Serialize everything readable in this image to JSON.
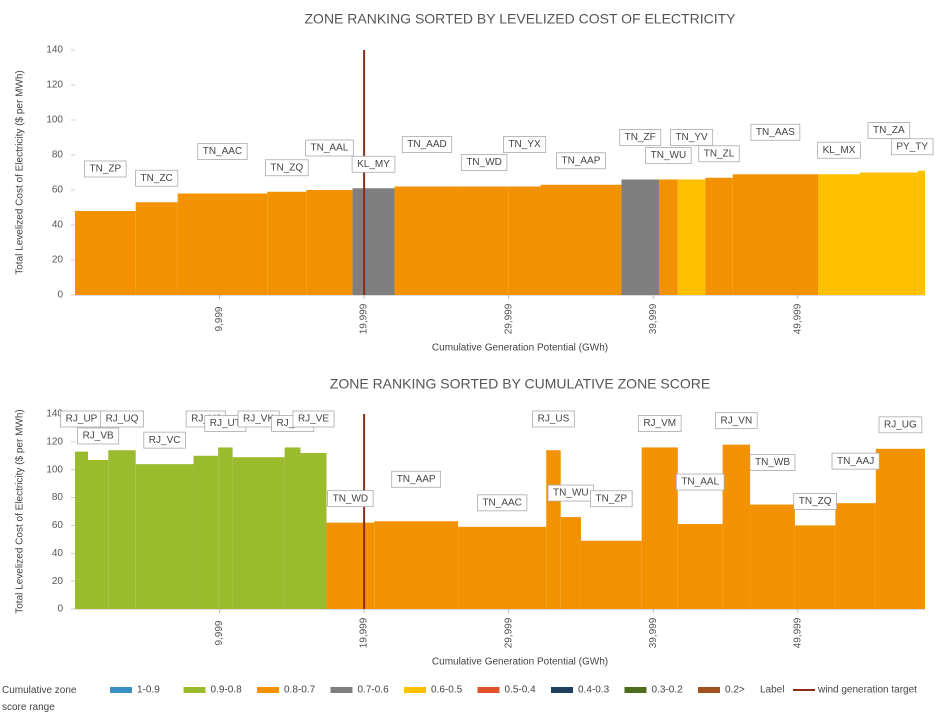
{
  "chart_data": [
    {
      "type": "variwide",
      "title": "ZONE RANKING SORTED BY LEVELIZED COST OF ELECTRICITY",
      "xlabel": "Cumulative Generation Potential (GWh)",
      "ylabel": "Total Levelized Cost of Electricity ($ per MWh)",
      "categories": [
        "TN_ZP",
        "TN_ZC",
        "TN_AAC",
        "TN_ZQ",
        "TN_AAL",
        "KL_MY",
        "TN_AAD",
        "TN_WD",
        "TN_YX",
        "TN_AAP",
        "TN_ZF",
        "TN_WU",
        "TN_YV",
        "TN_ZL",
        "TN_AAS",
        "KL_MX",
        "TN_ZA",
        "PY_TY"
      ],
      "x_edges": [
        0,
        4200,
        7100,
        13300,
        16000,
        19200,
        22100,
        26600,
        30000,
        32200,
        37800,
        40400,
        41700,
        43600,
        45500,
        51400,
        54300,
        58300,
        58800
      ],
      "values": [
        48,
        53,
        58,
        59,
        60,
        61,
        62,
        62,
        62,
        63,
        66,
        66,
        66,
        67,
        69,
        69,
        70,
        71
      ],
      "colors": [
        "#f39200",
        "#f39200",
        "#f39200",
        "#f39200",
        "#f39200",
        "#7f7f7f",
        "#f39200",
        "#f39200",
        "#f39200",
        "#f39200",
        "#7f7f7f",
        "#f39200",
        "#ffc000",
        "#f39200",
        "#f39200",
        "#ffc000",
        "#ffc000",
        "#ffc000"
      ],
      "xlim": [
        0,
        58800
      ],
      "xticks": [
        {
          "value": 9999,
          "label": "9,999"
        },
        {
          "value": 19999,
          "label": "19,999"
        },
        {
          "value": 29999,
          "label": "29,999"
        },
        {
          "value": 39999,
          "label": "39,999"
        },
        {
          "value": 49999,
          "label": "49,999"
        }
      ],
      "ylim": [
        0,
        140
      ],
      "yticks": [
        0,
        20,
        40,
        60,
        80,
        100,
        120,
        140
      ],
      "target_x": 20000,
      "target_color": "#8b2c1a"
    },
    {
      "type": "variwide",
      "title": "ZONE RANKING SORTED BY CUMULATIVE ZONE SCORE",
      "xlabel": "Cumulative Generation Potential (GWh)",
      "ylabel": "Total Levelized Cost of Electricity ($ per MWh)",
      "categories": [
        "RJ_UP",
        "RJ_VB",
        "RJ_UQ",
        "RJ_VC",
        "RJ_VJ",
        "RJ_UT",
        "RJ_VK",
        "RJ_VO",
        "RJ_VE",
        "TN_WD",
        "TN_AAP",
        "TN_AAC",
        "RJ_US",
        "TN_WU",
        "TN_ZP",
        "RJ_VM",
        "TN_AAL",
        "RJ_VN",
        "TN_WB",
        "TN_ZQ",
        "TN_AAJ",
        "RJ_UG"
      ],
      "x_edges": [
        0,
        900,
        2300,
        4200,
        8200,
        9900,
        10900,
        14500,
        15600,
        17400,
        20700,
        26500,
        32600,
        33600,
        35000,
        39200,
        41700,
        44800,
        46700,
        49800,
        52600,
        55400,
        58800
      ],
      "values": [
        113,
        107,
        114,
        104,
        110,
        116,
        109,
        116,
        112,
        62,
        63,
        59,
        114,
        66,
        49,
        116,
        61,
        118,
        75,
        60,
        76,
        115
      ],
      "colors": [
        "#9bbb2f",
        "#9bbb2f",
        "#9bbb2f",
        "#9bbb2f",
        "#9bbb2f",
        "#9bbb2f",
        "#9bbb2f",
        "#9bbb2f",
        "#9bbb2f",
        "#f39200",
        "#f39200",
        "#f39200",
        "#f39200",
        "#f39200",
        "#f39200",
        "#f39200",
        "#f39200",
        "#f39200",
        "#f39200",
        "#f39200",
        "#f39200",
        "#f39200"
      ],
      "xlim": [
        0,
        58800
      ],
      "xticks": [
        {
          "value": 9999,
          "label": "9,999"
        },
        {
          "value": 19999,
          "label": "19,999"
        },
        {
          "value": 29999,
          "label": "29,999"
        },
        {
          "value": 39999,
          "label": "39,999"
        },
        {
          "value": 49999,
          "label": "49,999"
        }
      ],
      "ylim": [
        0,
        140
      ],
      "yticks": [
        0,
        20,
        40,
        60,
        80,
        100,
        120,
        140
      ],
      "target_x": 20000,
      "target_color": "#8b2c1a"
    }
  ],
  "legend": {
    "title": "Cumulative zone score range",
    "items": [
      {
        "name": "1-0.9",
        "color": "#3a8fc4"
      },
      {
        "name": "0.9-0.8",
        "color": "#9bbb2f"
      },
      {
        "name": "0.8-0.7",
        "color": "#f39200"
      },
      {
        "name": "0.7-0.6",
        "color": "#7f7f7f"
      },
      {
        "name": "0.6-0.5",
        "color": "#ffc000"
      },
      {
        "name": "0.5-0.4",
        "color": "#e0522b"
      },
      {
        "name": "0.4-0.3",
        "color": "#1f3f5f"
      },
      {
        "name": "0.3-0.2",
        "color": "#4e6b1e"
      },
      {
        "name": "0.2>",
        "color": "#a0521c"
      }
    ],
    "label_item": "Label",
    "target_name": "wind generation target",
    "target_color": "#8b2c1a"
  }
}
